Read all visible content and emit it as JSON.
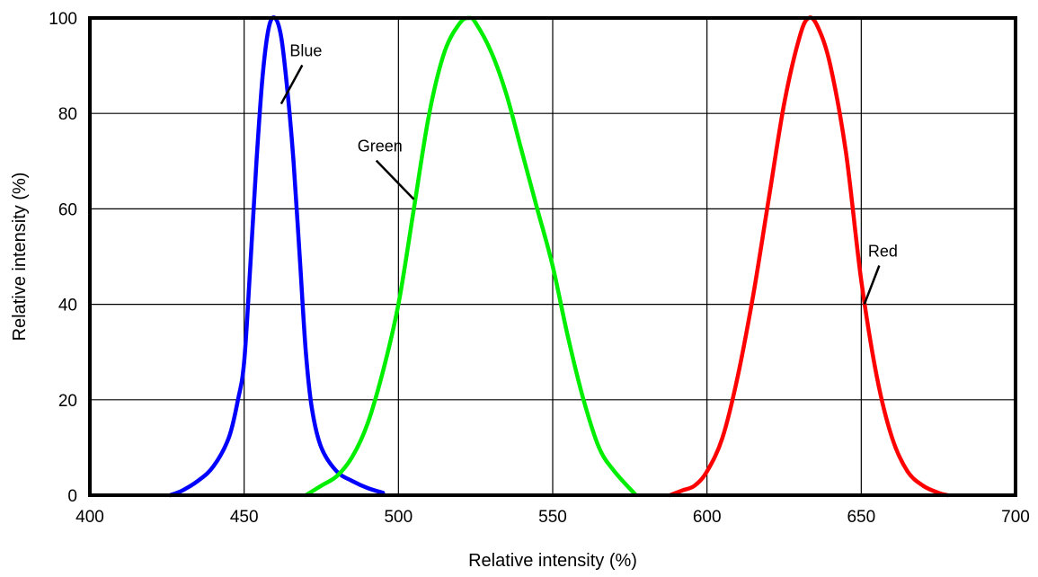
{
  "chart_data": {
    "type": "line",
    "title": "",
    "xlabel": "Relative intensity (%)",
    "ylabel": "Relative intensity (%)",
    "xlim": [
      400,
      700
    ],
    "ylim": [
      0,
      100
    ],
    "xticks": [
      400,
      450,
      500,
      550,
      600,
      650,
      700
    ],
    "yticks": [
      0,
      20,
      40,
      60,
      80,
      100
    ],
    "grid": true,
    "legend": "none",
    "series": [
      {
        "name": "Blue",
        "color": "#0000ff",
        "x": [
          426,
          430,
          435,
          440,
          445,
          448,
          450,
          452,
          454,
          456,
          458,
          460,
          462,
          464,
          466,
          468,
          470,
          472,
          475,
          480,
          485,
          490,
          495
        ],
        "y": [
          0,
          1,
          3,
          6,
          12,
          20,
          28,
          48,
          70,
          88,
          98,
          100,
          96,
          85,
          70,
          50,
          30,
          18,
          10,
          5,
          3,
          1.5,
          0.5
        ]
      },
      {
        "name": "Green",
        "color": "#00ee00",
        "x": [
          470,
          475,
          480,
          485,
          490,
          495,
          500,
          505,
          510,
          515,
          520,
          523,
          525,
          530,
          535,
          540,
          545,
          550,
          555,
          560,
          565,
          570,
          577
        ],
        "y": [
          0,
          2,
          4,
          8,
          15,
          26,
          40,
          60,
          80,
          93,
          99,
          100,
          99,
          93,
          84,
          72,
          60,
          48,
          33,
          20,
          10,
          5,
          0
        ]
      },
      {
        "name": "Red",
        "color": "#ff0000",
        "x": [
          588,
          592,
          596,
          600,
          605,
          610,
          615,
          620,
          625,
          630,
          633,
          636,
          640,
          645,
          650,
          655,
          660,
          665,
          670,
          675,
          678
        ],
        "y": [
          0,
          1,
          2,
          5,
          12,
          25,
          42,
          62,
          82,
          96,
          100,
          98,
          90,
          72,
          45,
          25,
          12,
          5,
          2,
          0.5,
          0
        ]
      }
    ],
    "annotations": [
      {
        "text": "Blue",
        "series": "Blue",
        "point": [
          462,
          82
        ],
        "label": [
          470,
          92
        ]
      },
      {
        "text": "Green",
        "series": "Green",
        "point": [
          505,
          62
        ],
        "label": [
          494,
          72
        ]
      },
      {
        "text": "Red",
        "series": "Red",
        "point": [
          651,
          40
        ],
        "label": [
          657,
          50
        ]
      }
    ]
  }
}
